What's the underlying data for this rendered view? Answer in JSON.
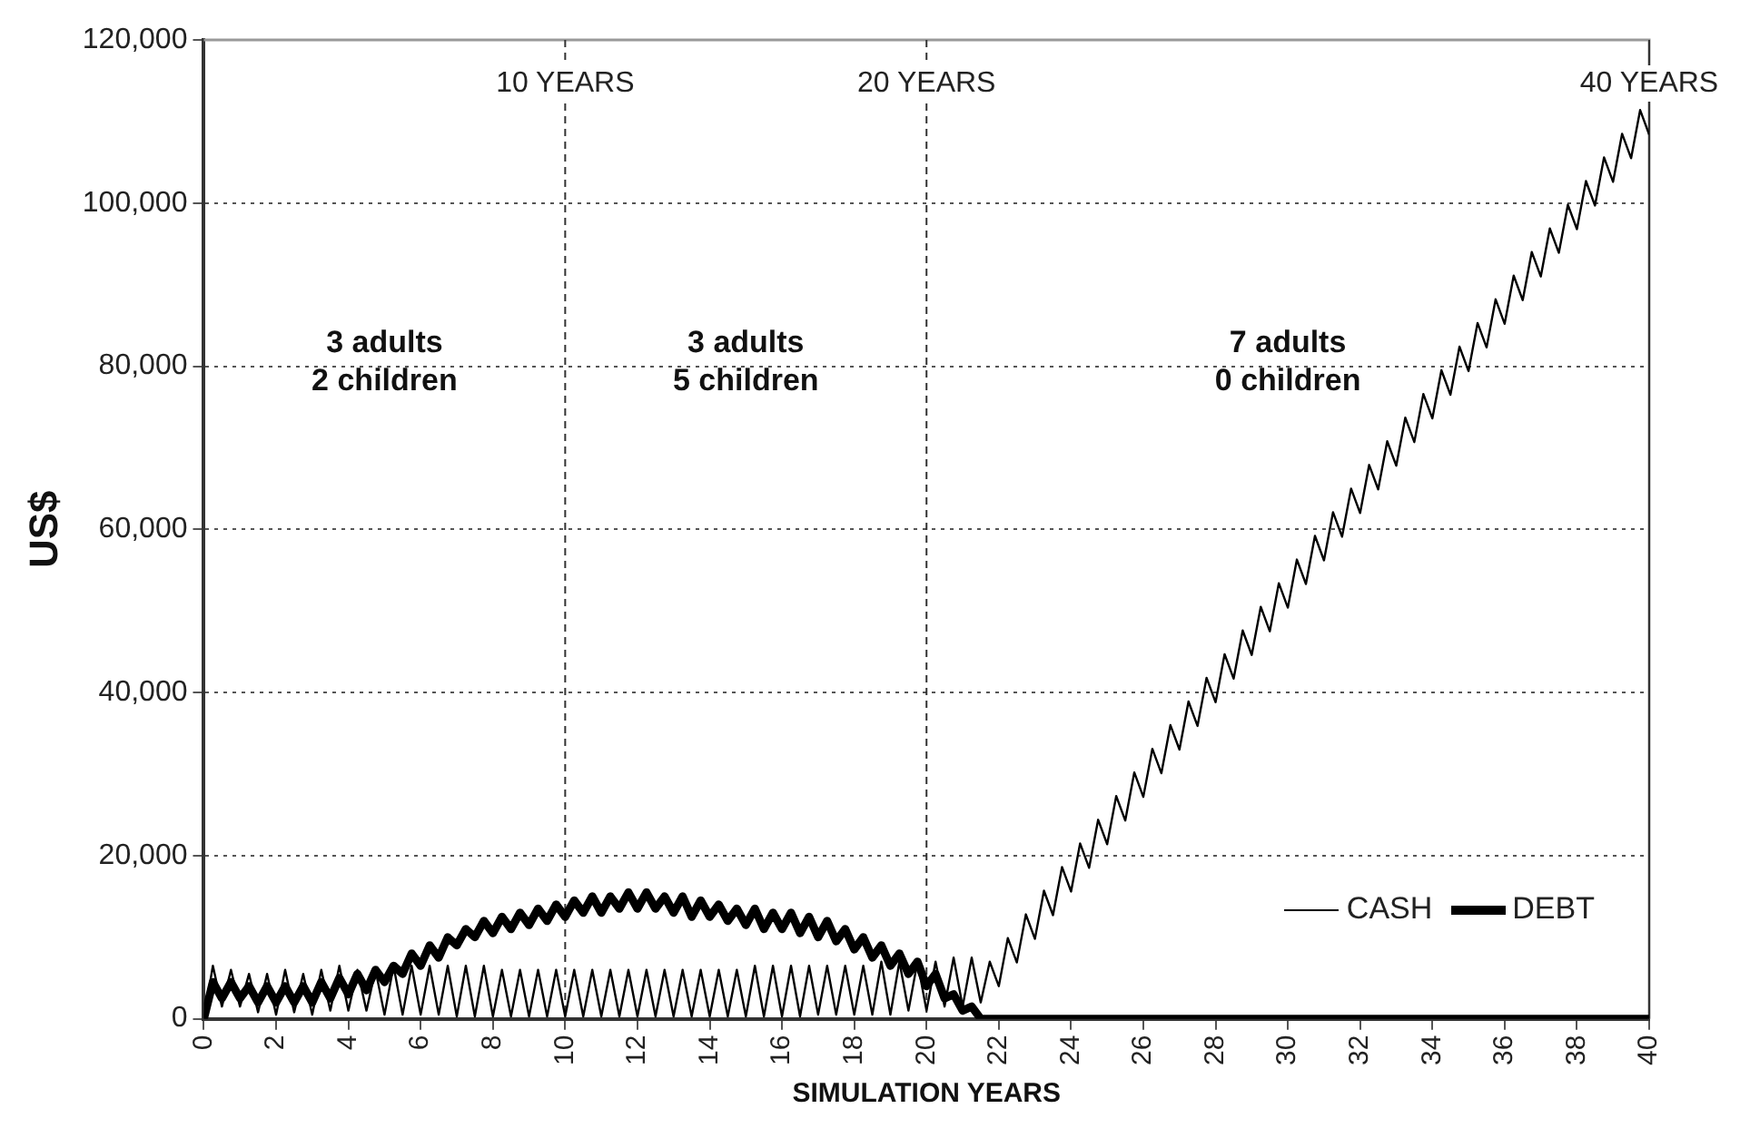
{
  "chart_data": {
    "type": "line",
    "xlabel": "SIMULATION YEARS",
    "ylabel": "US$",
    "xlim": [
      0,
      40
    ],
    "xticks": [
      0,
      2,
      4,
      6,
      8,
      10,
      12,
      14,
      16,
      18,
      20,
      22,
      24,
      26,
      28,
      30,
      32,
      34,
      36,
      38,
      40
    ],
    "ylim": [
      0,
      120000
    ],
    "yticks": [
      {
        "value": 0,
        "label": "0"
      },
      {
        "value": 20000,
        "label": "20,000"
      },
      {
        "value": 40000,
        "label": "40,000"
      },
      {
        "value": 60000,
        "label": "60,000"
      },
      {
        "value": 80000,
        "label": "80,000"
      },
      {
        "value": 100000,
        "label": "100,000"
      },
      {
        "value": 120000,
        "label": "120,000"
      }
    ],
    "grid": "y",
    "legend": "bottom right",
    "marker": "none",
    "line_style": "solid",
    "ref_lines": [
      {
        "axis": "x",
        "value": 10,
        "label": "10 YEARS",
        "line_style": "dashed"
      },
      {
        "axis": "x",
        "value": 20,
        "label": "20 YEARS",
        "line_style": "dashed"
      },
      {
        "axis": "x",
        "value": 40,
        "label": "40 YEARS"
      }
    ],
    "annotations": [
      "3 adults\n2 children",
      "3 adults\n5 children",
      "7 adults\n0 children"
    ],
    "series": [
      {
        "name": "CASH",
        "color": "#000000",
        "x": [
          0,
          0.25,
          0.5,
          0.75,
          1,
          1.25,
          1.5,
          1.75,
          2,
          2.25,
          2.5,
          2.75,
          3,
          3.25,
          3.5,
          3.75,
          4,
          4.25,
          4.5,
          4.75,
          5,
          5.25,
          5.5,
          5.75,
          6,
          6.25,
          6.5,
          6.75,
          7,
          7.25,
          7.5,
          7.75,
          8,
          8.25,
          8.5,
          8.75,
          9,
          9.25,
          9.5,
          9.75,
          10,
          10.25,
          10.5,
          10.75,
          11,
          11.25,
          11.5,
          11.75,
          12,
          12.25,
          12.5,
          12.75,
          13,
          13.25,
          13.5,
          13.75,
          14,
          14.25,
          14.5,
          14.75,
          15,
          15.25,
          15.5,
          15.75,
          16,
          16.25,
          16.5,
          16.75,
          17,
          17.25,
          17.5,
          17.75,
          18,
          18.25,
          18.5,
          18.75,
          19,
          19.25,
          19.5,
          19.75,
          20,
          20.25,
          20.5,
          20.75,
          21,
          21.25,
          21.5,
          21.75,
          22,
          22.25,
          22.5,
          22.75,
          23,
          23.25,
          23.5,
          23.75,
          24,
          24.25,
          24.5,
          24.75,
          25,
          25.25,
          25.5,
          25.75,
          26,
          26.25,
          26.5,
          26.75,
          27,
          27.25,
          27.5,
          27.75,
          28,
          28.25,
          28.5,
          28.75,
          29,
          29.25,
          29.5,
          29.75,
          30,
          30.25,
          30.5,
          30.75,
          31,
          31.25,
          31.5,
          31.75,
          32,
          32.25,
          32.5,
          32.75,
          33,
          33.25,
          33.5,
          33.75,
          34,
          34.25,
          34.5,
          34.75,
          35,
          35.25,
          35.5,
          35.75,
          36,
          36.25,
          36.5,
          36.75,
          37,
          37.25,
          37.5,
          37.75,
          38,
          38.25,
          38.5,
          38.75,
          39,
          39.25,
          39.5,
          39.75,
          40
        ],
        "values": [
          0,
          6500,
          1500,
          6000,
          1500,
          5500,
          800,
          5500,
          500,
          6000,
          800,
          5500,
          500,
          6000,
          1000,
          6500,
          1000,
          6000,
          1000,
          6000,
          500,
          6500,
          500,
          6500,
          500,
          6500,
          500,
          6500,
          300,
          6500,
          300,
          6500,
          300,
          6000,
          300,
          6000,
          300,
          6000,
          300,
          6000,
          300,
          6000,
          300,
          6000,
          300,
          6000,
          300,
          6000,
          300,
          6000,
          300,
          6000,
          300,
          6000,
          300,
          6000,
          300,
          6000,
          300,
          6000,
          300,
          6500,
          300,
          6500,
          300,
          6500,
          300,
          6500,
          500,
          6500,
          500,
          6500,
          500,
          6500,
          500,
          7000,
          500,
          7000,
          1000,
          7000,
          1000,
          7000,
          1500,
          7500,
          1500,
          7500,
          2000,
          7000,
          4000,
          9900,
          6900,
          12800,
          9800,
          15700,
          12700,
          18600,
          15600,
          21500,
          18500,
          24400,
          21400,
          27300,
          24300,
          30200,
          27200,
          33100,
          30100,
          36000,
          33000,
          38900,
          35900,
          41800,
          38800,
          44700,
          41700,
          47600,
          44600,
          50500,
          47500,
          53400,
          50400,
          56300,
          53300,
          59200,
          56200,
          62100,
          59100,
          65000,
          62000,
          67900,
          64900,
          70800,
          67800,
          73700,
          70700,
          76600,
          73600,
          79500,
          76500,
          82400,
          79400,
          85300,
          82300,
          88200,
          85200,
          91100,
          88100,
          94000,
          91000,
          96900,
          93900,
          99800,
          96800,
          102700,
          99700,
          105600,
          102600,
          108500,
          105500,
          111400,
          108400
        ]
      },
      {
        "name": "DEBT",
        "color": "#000000",
        "x": [
          0,
          0.25,
          0.5,
          0.75,
          1,
          1.25,
          1.5,
          1.75,
          2,
          2.25,
          2.5,
          2.75,
          3,
          3.25,
          3.5,
          3.75,
          4,
          4.25,
          4.5,
          4.75,
          5,
          5.25,
          5.5,
          5.75,
          6,
          6.25,
          6.5,
          6.75,
          7,
          7.25,
          7.5,
          7.75,
          8,
          8.25,
          8.5,
          8.75,
          9,
          9.25,
          9.5,
          9.75,
          10,
          10.25,
          10.5,
          10.75,
          11,
          11.25,
          11.5,
          11.75,
          12,
          12.25,
          12.5,
          12.75,
          13,
          13.25,
          13.5,
          13.75,
          14,
          14.25,
          14.5,
          14.75,
          15,
          15.25,
          15.5,
          15.75,
          16,
          16.25,
          16.5,
          16.75,
          17,
          17.25,
          17.5,
          17.75,
          18,
          18.25,
          18.5,
          18.75,
          19,
          19.25,
          19.5,
          19.75,
          20,
          20.25,
          20.5,
          20.75,
          21,
          21.25,
          21.5,
          40
        ],
        "values": [
          0,
          4500,
          2500,
          4500,
          2500,
          4000,
          2000,
          4000,
          2000,
          4000,
          2000,
          4000,
          2000,
          4500,
          2500,
          5000,
          3000,
          5500,
          3500,
          6000,
          4500,
          6500,
          5500,
          8000,
          6500,
          9000,
          7500,
          10000,
          9000,
          11000,
          10000,
          12000,
          10500,
          12500,
          11000,
          13000,
          11500,
          13500,
          12000,
          14000,
          12500,
          14500,
          13000,
          15000,
          13000,
          15000,
          13500,
          15500,
          13500,
          15500,
          13500,
          15000,
          13000,
          15000,
          12500,
          14500,
          12500,
          14000,
          12000,
          13500,
          11500,
          13500,
          11000,
          13000,
          11000,
          13000,
          10500,
          12500,
          10000,
          12000,
          9500,
          11000,
          8500,
          10000,
          7500,
          9000,
          6500,
          8000,
          5500,
          7000,
          4000,
          5500,
          2500,
          3000,
          1000,
          1500,
          0,
          0
        ]
      }
    ]
  }
}
